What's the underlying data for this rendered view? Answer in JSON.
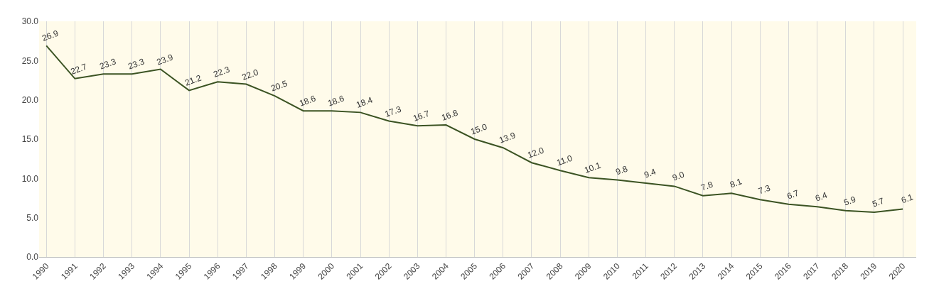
{
  "chart_data": {
    "type": "line",
    "categories": [
      "1990",
      "1991",
      "1992",
      "1993",
      "1994",
      "1995",
      "1996",
      "1997",
      "1998",
      "1999",
      "2000",
      "2001",
      "2002",
      "2003",
      "2004",
      "2005",
      "2006",
      "2007",
      "2008",
      "2009",
      "2010",
      "2011",
      "2012",
      "2013",
      "2014",
      "2015",
      "2016",
      "2017",
      "2018",
      "2019",
      "2020"
    ],
    "series": [
      {
        "color": "#3b5323",
        "values": [
          26.9,
          22.7,
          23.3,
          23.3,
          23.9,
          21.2,
          22.3,
          22.0,
          20.5,
          18.6,
          18.6,
          18.4,
          17.3,
          16.7,
          16.8,
          15.0,
          13.9,
          12.0,
          11.0,
          10.1,
          9.8,
          9.4,
          9.0,
          7.8,
          8.1,
          7.3,
          6.7,
          6.4,
          5.9,
          5.7,
          6.1
        ],
        "value_labels": [
          "26.9",
          "22.7",
          "23.3",
          "23.3",
          "23.9",
          "21.2",
          "22.3",
          "22.0",
          "20.5",
          "18.6",
          "18.6",
          "18.4",
          "17.3",
          "16.7",
          "16.8",
          "15.0",
          "13.9",
          "12.0",
          "11.0",
          "10.1",
          "9.8",
          "9.4",
          "9.0",
          "7.8",
          "8.1",
          "7.3",
          "6.7",
          "6.4",
          "5.9",
          "5.7",
          "6.1"
        ]
      }
    ],
    "ylim": [
      0,
      30
    ],
    "yticks": [
      {
        "value": 0,
        "label": "0.0"
      },
      {
        "value": 5,
        "label": "5.0"
      },
      {
        "value": 10,
        "label": "10.0"
      },
      {
        "value": 15,
        "label": "15.0"
      },
      {
        "value": 20,
        "label": "20.0"
      },
      {
        "value": 25,
        "label": "25.0"
      },
      {
        "value": 30,
        "label": "30.0"
      }
    ],
    "grid": "x",
    "marker": "none",
    "line_style": "solid"
  }
}
